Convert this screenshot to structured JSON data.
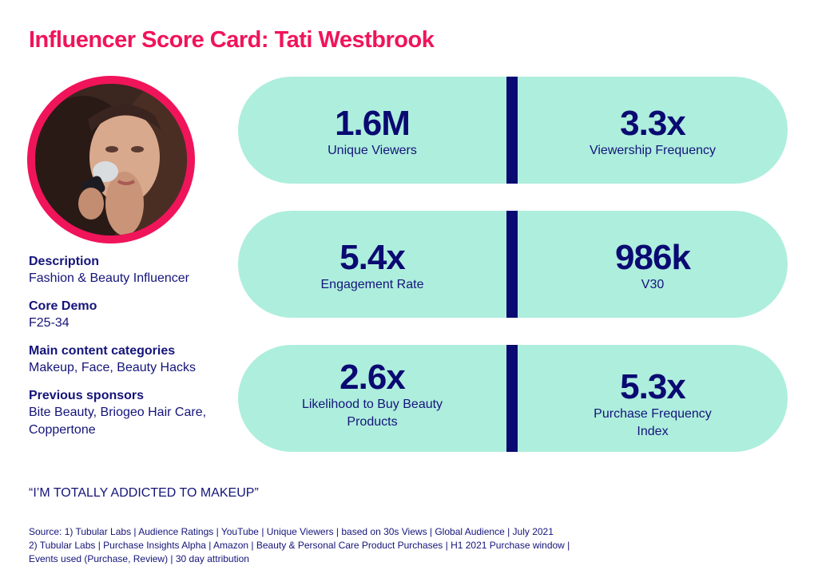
{
  "title": "Influencer Score Card: Tati Westbrook",
  "profile": {
    "description_label": "Description",
    "description_value": "Fashion & Beauty Influencer",
    "core_demo_label": "Core Demo",
    "core_demo_value": "F25-34",
    "categories_label": "Main content categories",
    "categories_value": "Makeup, Face, Beauty Hacks",
    "sponsors_label": "Previous sponsors",
    "sponsors_value_1": "Bite Beauty, Briogeo Hair Care,",
    "sponsors_value_2": "Coppertone"
  },
  "quote": "“I’M TOTALLY ADDICTED TO MAKEUP”",
  "metrics": [
    {
      "value": "1.6M",
      "label": "Unique Viewers"
    },
    {
      "value": "3.3x",
      "label": "Viewership Frequency"
    },
    {
      "value": "5.4x",
      "label": "Engagement Rate"
    },
    {
      "value": "986k",
      "label": "V30"
    },
    {
      "value": "2.6x",
      "label_1": "Likelihood to Buy Beauty",
      "label_2": "Products"
    },
    {
      "value": "5.3x",
      "label_1": "Purchase Frequency",
      "label_2": "Index"
    }
  ],
  "source": {
    "line1": "Source: 1) Tubular Labs | Audience Ratings | YouTube | Unique Viewers | based on 30s Views | Global Audience | July 2021",
    "line2": "2) Tubular Labs | Purchase Insights Alpha | Amazon | Beauty & Personal Care Product Purchases | H1 2021 Purchase window |",
    "line3": "Events used (Purchase, Review) | 30 day attribution"
  },
  "colors": {
    "title": "#f0145a",
    "ring": "#f0145a",
    "pill": "#aeeedd",
    "divider": "#0a0a72",
    "text": "#14147a"
  }
}
